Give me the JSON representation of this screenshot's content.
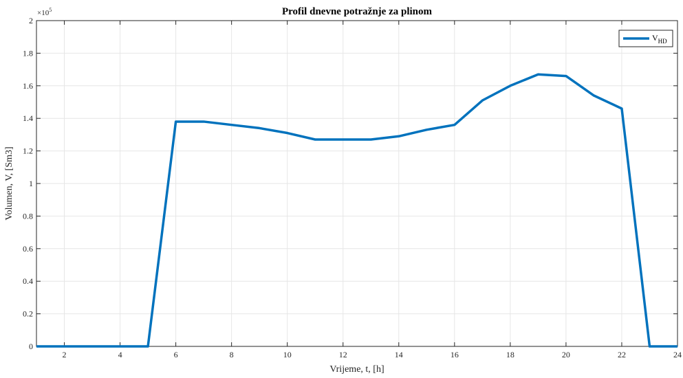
{
  "chart_data": {
    "type": "line",
    "title": "Profil dnevne potražnje za plinom",
    "xlabel": "Vrijeme, t, [h]",
    "ylabel": "Volumen, V, [Sm3]",
    "y_exponent_base": "×10",
    "y_exponent_power": "5",
    "xlim": [
      1,
      24
    ],
    "ylim": [
      0,
      2
    ],
    "y_multiplier": 100000,
    "xticks": [
      2,
      4,
      6,
      8,
      10,
      12,
      14,
      16,
      18,
      20,
      22,
      24
    ],
    "yticks": [
      0,
      0.2,
      0.4,
      0.6,
      0.8,
      1,
      1.2,
      1.4,
      1.6,
      1.8,
      2
    ],
    "ytick_labels": [
      "0",
      "0.2",
      "0.4",
      "0.6",
      "0.8",
      "1",
      "1.2",
      "1.4",
      "1.6",
      "1.8",
      "2"
    ],
    "grid": true,
    "legend_position": "top-right",
    "series": [
      {
        "name": "V",
        "name_subscript": "HD",
        "color": "#0072BD",
        "x": [
          1,
          2,
          3,
          4,
          5,
          6,
          7,
          8,
          9,
          10,
          11,
          12,
          13,
          14,
          15,
          16,
          17,
          18,
          19,
          20,
          21,
          22,
          23,
          24
        ],
        "values": [
          0,
          0,
          0,
          0,
          0,
          1.38,
          1.38,
          1.36,
          1.34,
          1.31,
          1.27,
          1.27,
          1.27,
          1.29,
          1.33,
          1.36,
          1.51,
          1.6,
          1.67,
          1.66,
          1.54,
          1.46,
          0,
          0
        ]
      }
    ]
  }
}
